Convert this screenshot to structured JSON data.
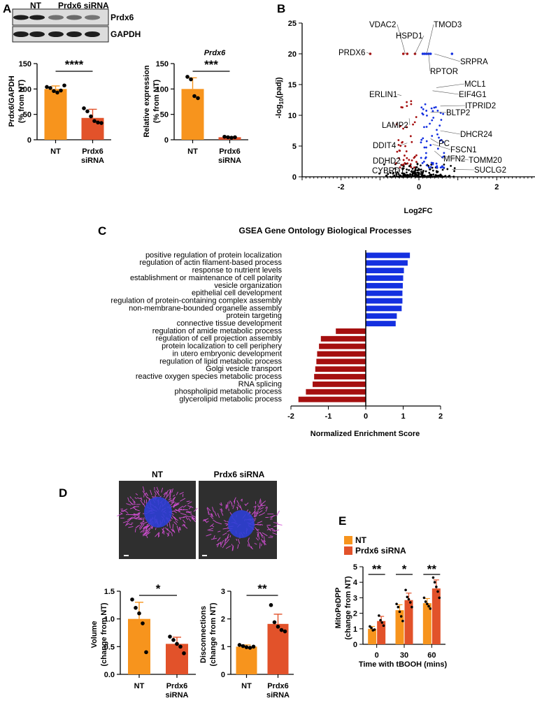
{
  "panels": {
    "a": "A",
    "b": "B",
    "c": "C",
    "d": "D",
    "e": "E"
  },
  "colors": {
    "orange": "#f7941d",
    "redorange": "#e2522a",
    "darkred": "#a50f0f",
    "blue": "#1430e0",
    "black": "#000000",
    "microscopy_bg": "#2f2f2f",
    "nuclei": "#2d3fd6",
    "mito": "#d44fd6"
  },
  "western": {
    "lane_labels": [
      "NT",
      "Prdx6 siRNA"
    ],
    "bands": [
      "Prdx6",
      "GAPDH"
    ],
    "prdx6_intensity": [
      1.0,
      1.0,
      0.45,
      0.5,
      0.42
    ],
    "gapdh_intensity": [
      1.0,
      1.0,
      1.0,
      1.0,
      1.0
    ]
  },
  "chart_data": [
    {
      "id": "A1",
      "type": "bar",
      "title": "",
      "ylabel": "Prdx6/GAPDH\n(% from NT)",
      "categories": [
        "NT",
        "Prdx6\nsiRNA"
      ],
      "values": [
        100,
        43
      ],
      "errors": [
        6,
        17
      ],
      "points": [
        [
          104,
          102,
          96,
          93,
          97,
          107
        ],
        [
          62,
          56,
          46,
          37,
          34,
          33
        ]
      ],
      "ylim": [
        0,
        150
      ],
      "yticks": [
        0,
        50,
        100,
        150
      ],
      "significance": "****"
    },
    {
      "id": "A2",
      "type": "bar",
      "title": "Prdx6",
      "ylabel": "Relative expression\n(% from NT)",
      "categories": [
        "NT",
        "Prdx6\nsiRNA"
      ],
      "values": [
        100,
        5
      ],
      "errors": [
        22,
        1
      ],
      "points": [
        [
          124,
          119,
          86,
          82
        ],
        [
          6,
          5,
          4,
          5
        ]
      ],
      "ylim": [
        0,
        150
      ],
      "yticks": [
        0,
        50,
        100,
        150
      ],
      "significance": "***"
    },
    {
      "id": "B",
      "type": "scatter",
      "title": "",
      "xlabel": "Log2FC",
      "ylabel": "-log10(padj)",
      "xlim": [
        -3,
        3
      ],
      "ylim": [
        0,
        25
      ],
      "xticks": [
        -2,
        0,
        2
      ],
      "yticks": [
        0,
        5,
        10,
        15,
        20,
        25
      ],
      "labels": [
        {
          "text": "VDAC2",
          "x": -0.35,
          "y": 20
        },
        {
          "text": "HSPD1",
          "x": -0.1,
          "y": 20
        },
        {
          "text": "TMOD3",
          "x": 0.2,
          "y": 20
        },
        {
          "text": "PRDX6",
          "x": -1.25,
          "y": 20
        },
        {
          "text": "SRPRA",
          "x": 0.4,
          "y": 20
        },
        {
          "text": "RPTOR",
          "x": 0.25,
          "y": 20
        },
        {
          "text": "MCL1",
          "x": 0.45,
          "y": 14.5
        },
        {
          "text": "EIF4G1",
          "x": 0.35,
          "y": 14
        },
        {
          "text": "ERLIN1",
          "x": -0.45,
          "y": 13.2
        },
        {
          "text": "ITPRID2",
          "x": 0.55,
          "y": 11.5
        },
        {
          "text": "BLTP2",
          "x": 0.3,
          "y": 10.5
        },
        {
          "text": "LAMP2",
          "x": -0.25,
          "y": 9.5
        },
        {
          "text": "DHCR24",
          "x": 0.55,
          "y": 7.5
        },
        {
          "text": "PC",
          "x": 0.3,
          "y": 6.2
        },
        {
          "text": "DDIT4",
          "x": -0.3,
          "y": 5.5
        },
        {
          "text": "FSCN1",
          "x": 0.35,
          "y": 5.3
        },
        {
          "text": "MFN2",
          "x": 0.4,
          "y": 4.2
        },
        {
          "text": "TOMM20",
          "x": 0.7,
          "y": 3.3
        },
        {
          "text": "DDHD2",
          "x": -0.5,
          "y": 3.0
        },
        {
          "text": "CYBRD1",
          "x": -0.6,
          "y": 1.2
        },
        {
          "text": "SUCLG2",
          "x": 0.85,
          "y": 1.2
        }
      ]
    },
    {
      "id": "C",
      "type": "bar",
      "orientation": "horizontal",
      "title": "GSEA Gene Ontology Biological Processes",
      "xlabel": "Normalized Enrichment Score",
      "xlim": [
        -2,
        2
      ],
      "xticks": [
        -2,
        -1,
        0,
        1,
        2
      ],
      "categories": [
        "positive regulation of protein localization",
        "regulation of actin filament-based process",
        "response to nutrient levels",
        "establishment or maintenance of cell polarity",
        "vesicle organization",
        "epithelial cell development",
        "regulation of protein-containing complex assembly",
        "non-membrane-bounded organelle assembly",
        "protein targeting",
        "connective tissue development",
        "regulation of amide metabolic process",
        "regulation of cell projection assembly",
        "protein localization to cell periphery",
        "in utero embryonic development",
        "regulation of lipid metabolic process",
        "Golgi vesicle transport",
        "reactive oxygen species metabolic process",
        "RNA splicing",
        "phospholipid metabolic process",
        "glycerolipid metabolic process"
      ],
      "values": [
        1.18,
        1.12,
        1.02,
        1.0,
        0.99,
        0.98,
        0.98,
        0.96,
        0.83,
        0.8,
        -0.8,
        -1.2,
        -1.25,
        -1.3,
        -1.32,
        -1.35,
        -1.38,
        -1.42,
        -1.6,
        -1.8
      ]
    },
    {
      "id": "D1",
      "type": "bar",
      "title": "",
      "ylabel": "Volume\n(change from NT)",
      "categories": [
        "NT",
        "Prdx6\nsiRNA"
      ],
      "values": [
        1.0,
        0.55
      ],
      "errors": [
        0.3,
        0.12
      ],
      "points": [
        [
          1.35,
          1.2,
          1.1,
          0.92,
          0.4
        ],
        [
          0.68,
          0.62,
          0.55,
          0.5,
          0.38
        ]
      ],
      "ylim": [
        0,
        1.5
      ],
      "yticks": [
        0.0,
        0.5,
        1.0,
        1.5
      ],
      "significance": "*"
    },
    {
      "id": "D2",
      "type": "bar",
      "title": "",
      "ylabel": "Disconnections\n(change from NT)",
      "categories": [
        "NT",
        "Prdx6\nsiRNA"
      ],
      "values": [
        1.0,
        1.82
      ],
      "errors": [
        0.06,
        0.35
      ],
      "points": [
        [
          1.06,
          1.02,
          0.98,
          0.96,
          1.0
        ],
        [
          2.5,
          1.88,
          1.72,
          1.6,
          1.55
        ]
      ],
      "ylim": [
        0,
        3
      ],
      "yticks": [
        0,
        1,
        2,
        3
      ],
      "significance": "**"
    },
    {
      "id": "E",
      "type": "bar",
      "title": "",
      "xlabel": "Time with tBOOH (mins)",
      "ylabel": "MitoPeDPP\n(change from NT)",
      "categories": [
        "0",
        "30",
        "60"
      ],
      "series": [
        {
          "name": "NT",
          "values": [
            1.0,
            2.2,
            2.65
          ],
          "errors": [
            0.15,
            0.35,
            0.3
          ],
          "points": [
            [
              1.15,
              1.05,
              0.9,
              0.95
            ],
            [
              2.6,
              2.4,
              2.1,
              1.8,
              1.5
            ],
            [
              3.0,
              2.75,
              2.6,
              2.45,
              2.3
            ]
          ]
        },
        {
          "name": "Prdx6 siRNA",
          "values": [
            1.5,
            2.85,
            3.6
          ],
          "errors": [
            0.3,
            0.45,
            0.55
          ],
          "points": [
            [
              1.85,
              1.55,
              1.4,
              1.2
            ],
            [
              3.5,
              3.05,
              2.9,
              2.7,
              2.4
            ],
            [
              4.3,
              4.0,
              3.7,
              3.4,
              3.0
            ]
          ]
        }
      ],
      "ylim": [
        0,
        5
      ],
      "yticks": [
        0,
        1,
        2,
        3,
        4,
        5
      ],
      "significance": [
        "**",
        "*",
        "**"
      ],
      "legend": "top-left"
    }
  ],
  "microscopy": {
    "labels": [
      "NT",
      "Prdx6 siRNA"
    ]
  }
}
